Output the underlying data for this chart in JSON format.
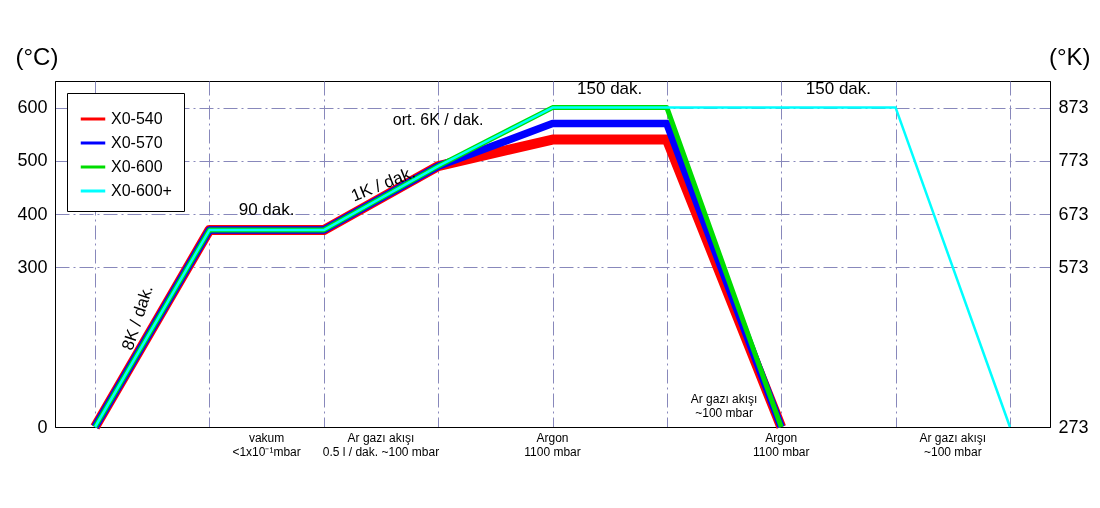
{
  "chart_data": {
    "type": "line",
    "ylabel": "(°C)",
    "y2label": "(°K)",
    "categories": [
      null,
      null,
      null,
      null,
      null,
      null,
      null,
      null,
      null
    ],
    "series": [
      {
        "name": "X0-540",
        "color": "#ff0000",
        "values": [
          0,
          370,
          370,
          490,
          540,
          540,
          0,
          null,
          null
        ]
      },
      {
        "name": "X0-570",
        "color": "#0000ff",
        "values": [
          0,
          370,
          370,
          490,
          570,
          570,
          0,
          null,
          null
        ]
      },
      {
        "name": "X0-600",
        "color": "#00dd00",
        "values": [
          0,
          370,
          370,
          490,
          600,
          600,
          0,
          null,
          null
        ]
      },
      {
        "name": "X0-600+",
        "color": "#00ffff",
        "values": [
          0,
          370,
          370,
          490,
          600,
          600,
          600,
          600,
          0
        ]
      }
    ],
    "ylim": [
      0,
      650
    ],
    "yticks": [
      0,
      300,
      400,
      500,
      600
    ],
    "y2lim": [
      273,
      923
    ],
    "y2ticks": [
      273,
      573,
      673,
      773,
      873
    ],
    "grid": true,
    "legend": "top left",
    "marker": "none",
    "line_style": "solid",
    "tick_labels": "y",
    "annotations": [
      "8K / dak.",
      "90 dak.",
      "1K / dak.",
      "ort. 6K / dak.",
      "150 dak.",
      "150 dak.",
      "vakum\n<1x10⁻¹mbar",
      "Ar gazı akışı\n0.5 l / dak. ~100 mbar",
      "Argon\n1100 mbar",
      "Argon\n1100 mbar",
      "Ar gazı akışı\n~100 mbar",
      "Ar gazı akışı\n~100 mbar"
    ]
  }
}
